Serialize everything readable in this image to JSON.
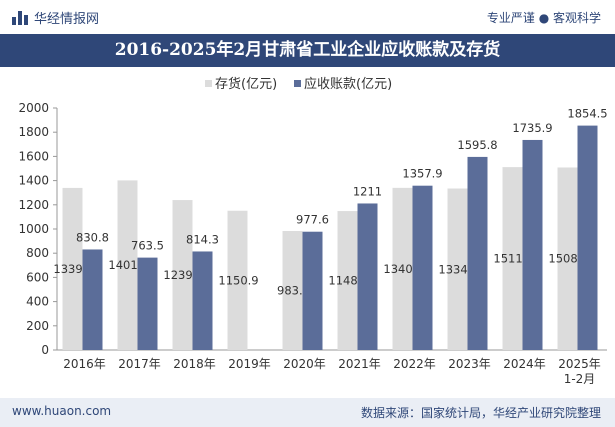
{
  "header": {
    "brand": "华经情报网",
    "tagline": "专业严谨 ● 客观科学",
    "title": "2016-2025年2月甘肃省工业企业应收账款及存货"
  },
  "footer": {
    "website": "www.huaon.com",
    "source": "数据来源：国家统计局，华经产业研究院整理"
  },
  "colors": {
    "inventory": "#dcdcdc",
    "receivables": "#5b6d99",
    "title_bg": "#2f4778"
  },
  "chart_data": {
    "type": "bar",
    "categories": [
      "2016年",
      "2017年",
      "2018年",
      "2019年",
      "2020年",
      "2021年",
      "2022年",
      "2023年",
      "2024年",
      "2025年\n1-2月"
    ],
    "series": [
      {
        "name": "存货(亿元)",
        "values": [
          1339.4,
          1401.7,
          1239.3,
          1150.9,
          983.5,
          1148.2,
          1340.2,
          1334.6,
          1511.5,
          1508.4
        ]
      },
      {
        "name": "应收账款(亿元)",
        "values": [
          830.8,
          763.5,
          814.3,
          null,
          977.6,
          1211,
          1357.9,
          1595.8,
          1735.9,
          1854.5
        ]
      }
    ],
    "ylim": [
      0,
      2000
    ],
    "yticks": [
      0,
      200,
      400,
      600,
      800,
      1000,
      1200,
      1400,
      1600,
      1800,
      2000
    ],
    "legend_position": "top-center",
    "grid": false
  }
}
